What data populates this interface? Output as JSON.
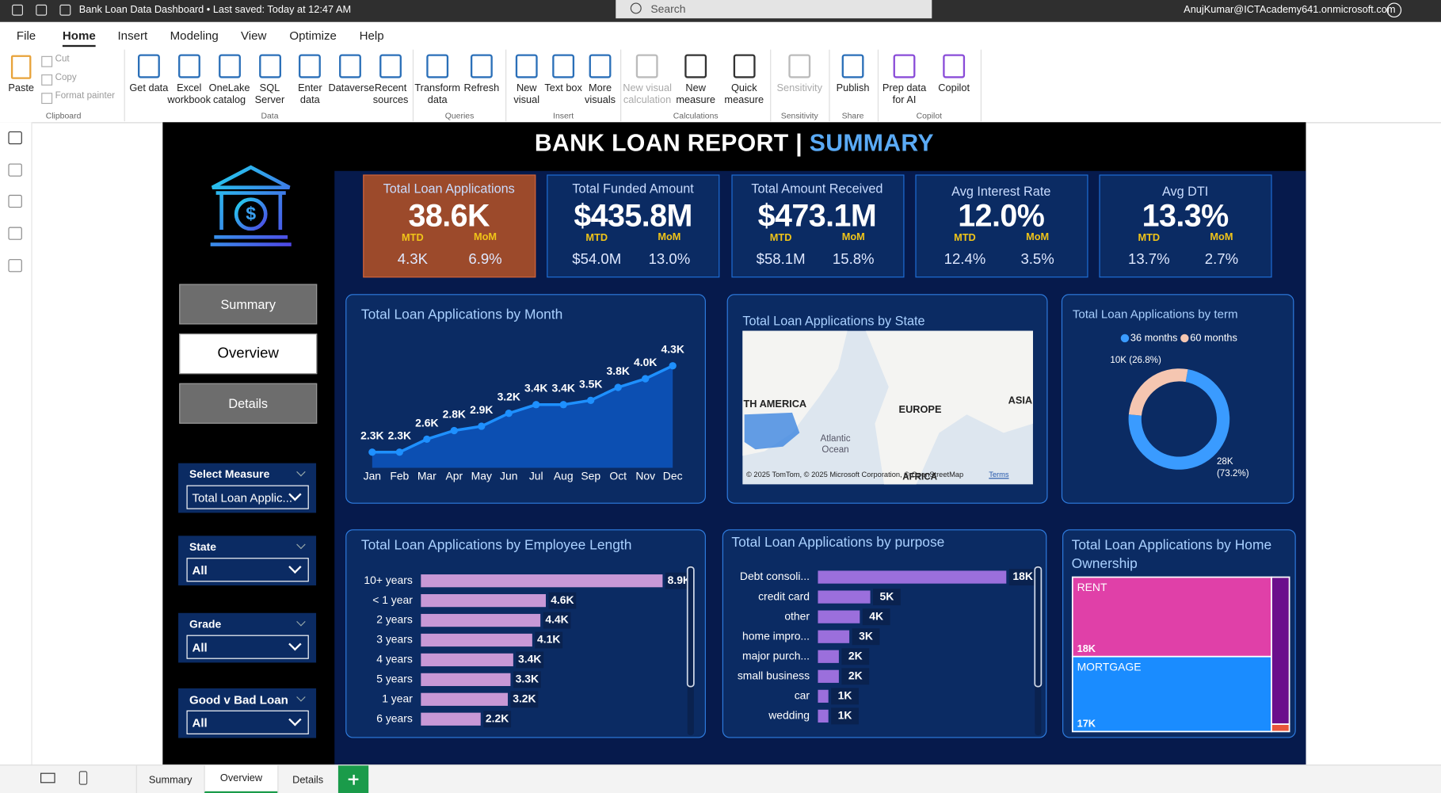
{
  "title_bar": {
    "file_title": "Bank Loan Data Dashboard • Last saved: Today at 12:47 AM",
    "search": "Search",
    "user": "AnujKumar@ICTAcademy641.onmicrosoft.com"
  },
  "ribbon_tabs": [
    "File",
    "Home",
    "Insert",
    "Modeling",
    "View",
    "Optimize",
    "Help"
  ],
  "ribbon_groups": [
    {
      "label": "Clipboard",
      "items": [
        "Paste",
        "Cut",
        "Copy",
        "Format painter"
      ]
    },
    {
      "label": "Data",
      "items": [
        "Get data",
        "Excel workbook",
        "OneLake catalog",
        "SQL Server",
        "Enter data",
        "Dataverse",
        "Recent sources"
      ]
    },
    {
      "label": "Queries",
      "items": [
        "Transform data",
        "Refresh"
      ]
    },
    {
      "label": "Insert",
      "items": [
        "New visual",
        "Text box",
        "More visuals"
      ]
    },
    {
      "label": "Calculations",
      "items": [
        "New visual calculation",
        "New measure",
        "Quick measure"
      ]
    },
    {
      "label": "Sensitivity",
      "items": [
        "Sensitivity"
      ]
    },
    {
      "label": "Share",
      "items": [
        "Publish"
      ]
    },
    {
      "label": "Copilot",
      "items": [
        "Prep data for AI",
        "Copilot"
      ]
    }
  ],
  "report": {
    "title": "BANK LOAN REPORT |",
    "title_highlight": "SUMMARY",
    "nav_buttons": [
      "Summary",
      "Overview",
      "Details"
    ],
    "slicers": [
      {
        "label": "Select Measure",
        "value": "Total Loan Applic..."
      },
      {
        "label": "State",
        "value": "All"
      },
      {
        "label": "Grade",
        "value": "All"
      },
      {
        "label": "Good v Bad Loan",
        "value": "All"
      }
    ],
    "kpis": [
      {
        "title": "Total Loan Applications",
        "value": "38.6K",
        "mtd_label": "MTD",
        "mom_label": "MoM",
        "mtd": "4.3K",
        "mom": "6.9%"
      },
      {
        "title": "Total Funded Amount",
        "value": "$435.8M",
        "mtd_label": "MTD",
        "mom_label": "MoM",
        "mtd": "$54.0M",
        "mom": "13.0%"
      },
      {
        "title": "Total Amount Received",
        "value": "$473.1M",
        "mtd_label": "MTD",
        "mom_label": "MoM",
        "mtd": "$58.1M",
        "mom": "15.8%"
      },
      {
        "title": "Avg Interest Rate",
        "value": "12.0%",
        "mtd_label": "MTD",
        "mom_label": "MoM",
        "mtd": "12.4%",
        "mom": "3.5%"
      },
      {
        "title": "Avg DTI",
        "value": "13.3%",
        "mtd_label": "MTD",
        "mom_label": "MoM",
        "mtd": "13.7%",
        "mom": "2.7%"
      }
    ],
    "map": {
      "title": "Total Loan Applications by State",
      "labels": [
        "TH AMERICA",
        "EUROPE",
        "ASIA",
        "Atlantic Ocean",
        "AFRICA"
      ],
      "attribution": "© 2025 TomTom, © 2025 Microsoft Corporation, © OpenStreetMap",
      "terms": "Terms"
    }
  },
  "page_tabs": [
    "Summary",
    "Overview",
    "Details"
  ],
  "chart_data": [
    {
      "type": "line",
      "title": "Total Loan Applications by Month",
      "categories": [
        "Jan",
        "Feb",
        "Mar",
        "Apr",
        "May",
        "Jun",
        "Jul",
        "Aug",
        "Sep",
        "Oct",
        "Nov",
        "Dec"
      ],
      "values": [
        2300,
        2300,
        2600,
        2800,
        2900,
        3200,
        3400,
        3400,
        3500,
        3800,
        4000,
        4300
      ],
      "value_labels": [
        "2.3K",
        "2.3K",
        "2.6K",
        "2.8K",
        "2.9K",
        "3.2K",
        "3.4K",
        "3.4K",
        "3.5K",
        "3.8K",
        "4.0K",
        "4.3K"
      ],
      "color": "#1e90ff",
      "area_color": "#0c4fb2"
    },
    {
      "type": "donut",
      "title": "Total Loan Applications by term",
      "categories": [
        "36 months",
        "60 months"
      ],
      "values": [
        28000,
        10000
      ],
      "value_labels": [
        "28K (73.2%)",
        "10K (26.8%)"
      ],
      "colors": [
        "#3a9bff",
        "#f5c6b1"
      ]
    },
    {
      "type": "hbar",
      "title": "Total Loan Applications by Employee Length",
      "categories": [
        "10+ years",
        "< 1 year",
        "2 years",
        "3 years",
        "4 years",
        "5 years",
        "1 year",
        "6 years"
      ],
      "values": [
        8900,
        4600,
        4400,
        4100,
        3400,
        3300,
        3200,
        2200
      ],
      "value_labels": [
        "8.9K",
        "4.6K",
        "4.4K",
        "4.1K",
        "3.4K",
        "3.3K",
        "3.2K",
        "2.2K"
      ],
      "color": "#c898d6"
    },
    {
      "type": "hbar",
      "title": "Total Loan Applications by purpose",
      "categories": [
        "Debt consoli...",
        "credit card",
        "other",
        "home impro...",
        "major purch...",
        "small business",
        "car",
        "wedding"
      ],
      "values": [
        18000,
        5000,
        4000,
        3000,
        2000,
        2000,
        1000,
        1000
      ],
      "value_labels": [
        "18K",
        "5K",
        "4K",
        "3K",
        "2K",
        "2K",
        "1K",
        "1K"
      ],
      "color": "#9b6fdc"
    },
    {
      "type": "treemap",
      "title": "Total Loan Applications by Home Ownership",
      "categories": [
        "RENT",
        "MORTGAGE",
        null,
        null
      ],
      "values": [
        18000,
        17000,
        3000,
        150
      ],
      "value_labels": [
        "18K",
        "17K",
        null,
        null
      ],
      "colors": [
        "#e040a8",
        "#1a8cff",
        "#6b0f8c",
        "#e8553a"
      ]
    }
  ]
}
